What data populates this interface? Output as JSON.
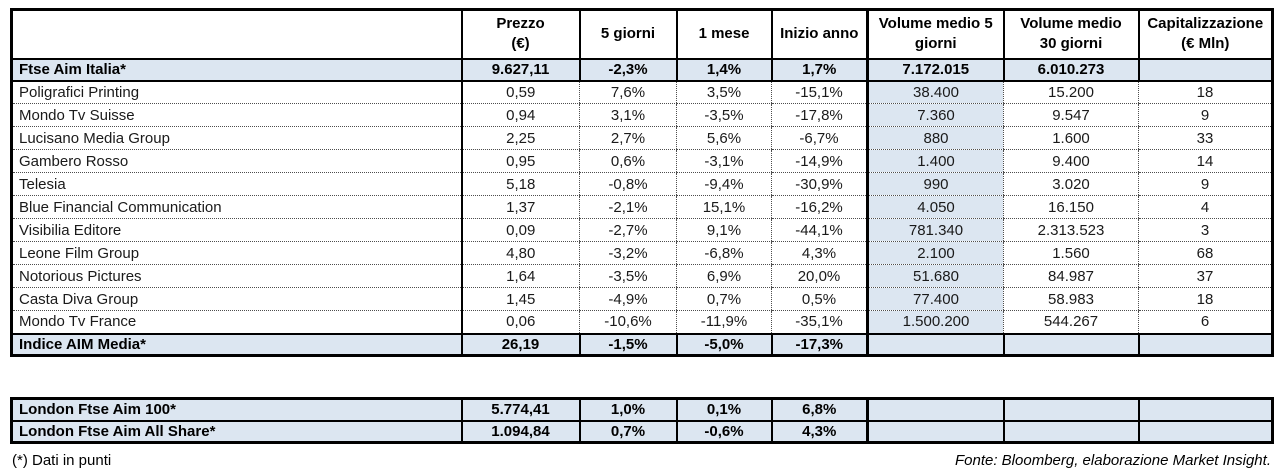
{
  "colors": {
    "row_shade": "#dce6f1",
    "grid_border": "#000000",
    "dotted_grid": "#4d4d4d",
    "background": "#ffffff"
  },
  "chart_data": {
    "type": "table",
    "columns": [
      "",
      "Prezzo (€)",
      "5 giorni",
      "1 mese",
      "Inizio anno",
      "Volume medio 5 giorni",
      "Volume medio 30 giorni",
      "Capitalizzazione (€ Mln)"
    ],
    "header_display": [
      "",
      "Prezzo\n(€)",
      "5 giorni",
      "1 mese",
      "Inizio anno",
      "Volume medio 5\ngiorni",
      "Volume medio\n30 giorni",
      "Capitalizzazione\n(€ Mln)"
    ],
    "rows": [
      {
        "name": "Ftse Aim Italia*",
        "values": [
          "9.627,11",
          "-2,3%",
          "1,4%",
          "1,7%",
          "7.172.015",
          "6.010.273",
          ""
        ],
        "emph": true
      },
      {
        "name": "Poligrafici Printing",
        "values": [
          "0,59",
          "7,6%",
          "3,5%",
          "-15,1%",
          "38.400",
          "15.200",
          "18"
        ],
        "emph": false
      },
      {
        "name": "Mondo Tv Suisse",
        "values": [
          "0,94",
          "3,1%",
          "-3,5%",
          "-17,8%",
          "7.360",
          "9.547",
          "9"
        ],
        "emph": false
      },
      {
        "name": "Lucisano Media Group",
        "values": [
          "2,25",
          "2,7%",
          "5,6%",
          "-6,7%",
          "880",
          "1.600",
          "33"
        ],
        "emph": false
      },
      {
        "name": "Gambero Rosso",
        "values": [
          "0,95",
          "0,6%",
          "-3,1%",
          "-14,9%",
          "1.400",
          "9.400",
          "14"
        ],
        "emph": false
      },
      {
        "name": "Telesia",
        "values": [
          "5,18",
          "-0,8%",
          "-9,4%",
          "-30,9%",
          "990",
          "3.020",
          "9"
        ],
        "emph": false
      },
      {
        "name": "Blue Financial Communication",
        "values": [
          "1,37",
          "-2,1%",
          "15,1%",
          "-16,2%",
          "4.050",
          "16.150",
          "4"
        ],
        "emph": false
      },
      {
        "name": "Visibilia Editore",
        "values": [
          "0,09",
          "-2,7%",
          "9,1%",
          "-44,1%",
          "781.340",
          "2.313.523",
          "3"
        ],
        "emph": false
      },
      {
        "name": "Leone Film Group",
        "values": [
          "4,80",
          "-3,2%",
          "-6,8%",
          "4,3%",
          "2.100",
          "1.560",
          "68"
        ],
        "emph": false
      },
      {
        "name": "Notorious Pictures",
        "values": [
          "1,64",
          "-3,5%",
          "6,9%",
          "20,0%",
          "51.680",
          "84.987",
          "37"
        ],
        "emph": false
      },
      {
        "name": "Casta Diva Group",
        "values": [
          "1,45",
          "-4,9%",
          "0,7%",
          "0,5%",
          "77.400",
          "58.983",
          "18"
        ],
        "emph": false
      },
      {
        "name": "Mondo Tv France",
        "values": [
          "0,06",
          "-10,6%",
          "-11,9%",
          "-35,1%",
          "1.500.200",
          "544.267",
          "6"
        ],
        "emph": false
      },
      {
        "name": "Indice AIM Media*",
        "values": [
          "26,19",
          "-1,5%",
          "-5,0%",
          "-17,3%",
          "",
          "",
          ""
        ],
        "emph": true
      }
    ],
    "london_rows": [
      {
        "name": "London Ftse Aim 100*",
        "values": [
          "5.774,41",
          "1,0%",
          "0,1%",
          "6,8%",
          "",
          "",
          ""
        ],
        "emph": true
      },
      {
        "name": "London Ftse Aim All Share*",
        "values": [
          "1.094,84",
          "0,7%",
          "-0,6%",
          "4,3%",
          "",
          "",
          ""
        ],
        "emph": true
      }
    ],
    "footnote": "(*) Dati in punti",
    "source": "Fonte: Bloomberg, elaborazione Market Insight."
  }
}
